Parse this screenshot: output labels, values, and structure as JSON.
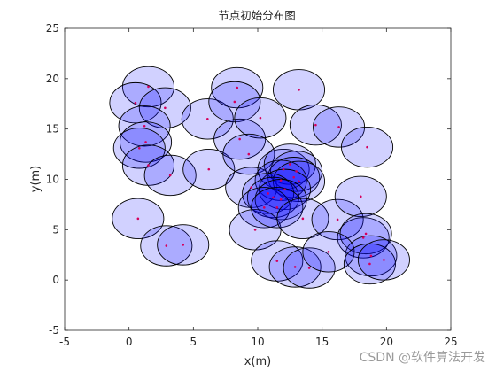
{
  "chart_data": {
    "type": "scatter",
    "title": "节点初始分布图",
    "xlabel": "x(m)",
    "ylabel": "y(m)",
    "xlim": [
      -5,
      25
    ],
    "ylim": [
      -5,
      25
    ],
    "xticks": [
      -5,
      0,
      5,
      10,
      15,
      20,
      25
    ],
    "yticks": [
      -5,
      0,
      5,
      10,
      15,
      20,
      25
    ],
    "grid": false,
    "legend": "none",
    "sensing_radius": 2,
    "circle_fill": "#0000ff",
    "circle_fill_opacity": 0.18,
    "circle_stroke": "#000000",
    "point_color": "#d6005c",
    "x": [
      1.5,
      0.5,
      2.8,
      1.2,
      1.3,
      0.8,
      1.5,
      3.2,
      6.1,
      6.2,
      8.4,
      8.2,
      8.6,
      10.2,
      9.3,
      13.2,
      14.5,
      16.3,
      18.5,
      9.5,
      12.0,
      12.5,
      13.0,
      12.8,
      11.8,
      13.2,
      12.1,
      10.8,
      11.2,
      11.8,
      10.5,
      9.8,
      11.5,
      13.5,
      16.2,
      18.0,
      18.2,
      18.4,
      18.8,
      0.7,
      2.9,
      4.2,
      11.5,
      12.9,
      14.0,
      15.5,
      18.7,
      19.8
    ],
    "y": [
      19.2,
      17.6,
      17.1,
      15.3,
      13.7,
      13.1,
      11.4,
      10.4,
      16.0,
      11.0,
      19.1,
      17.7,
      14.0,
      16.1,
      12.5,
      18.9,
      15.4,
      15.2,
      13.2,
      9.2,
      11.0,
      11.5,
      10.8,
      10.2,
      9.9,
      9.8,
      9.0,
      8.6,
      8.2,
      8.0,
      7.2,
      5.0,
      7.2,
      6.1,
      6.0,
      8.3,
      4.2,
      4.6,
      2.4,
      6.1,
      3.4,
      3.5,
      1.9,
      1.3,
      1.2,
      2.8,
      1.6,
      2.0
    ],
    "watermark": "CSDN @软件算法开发"
  }
}
